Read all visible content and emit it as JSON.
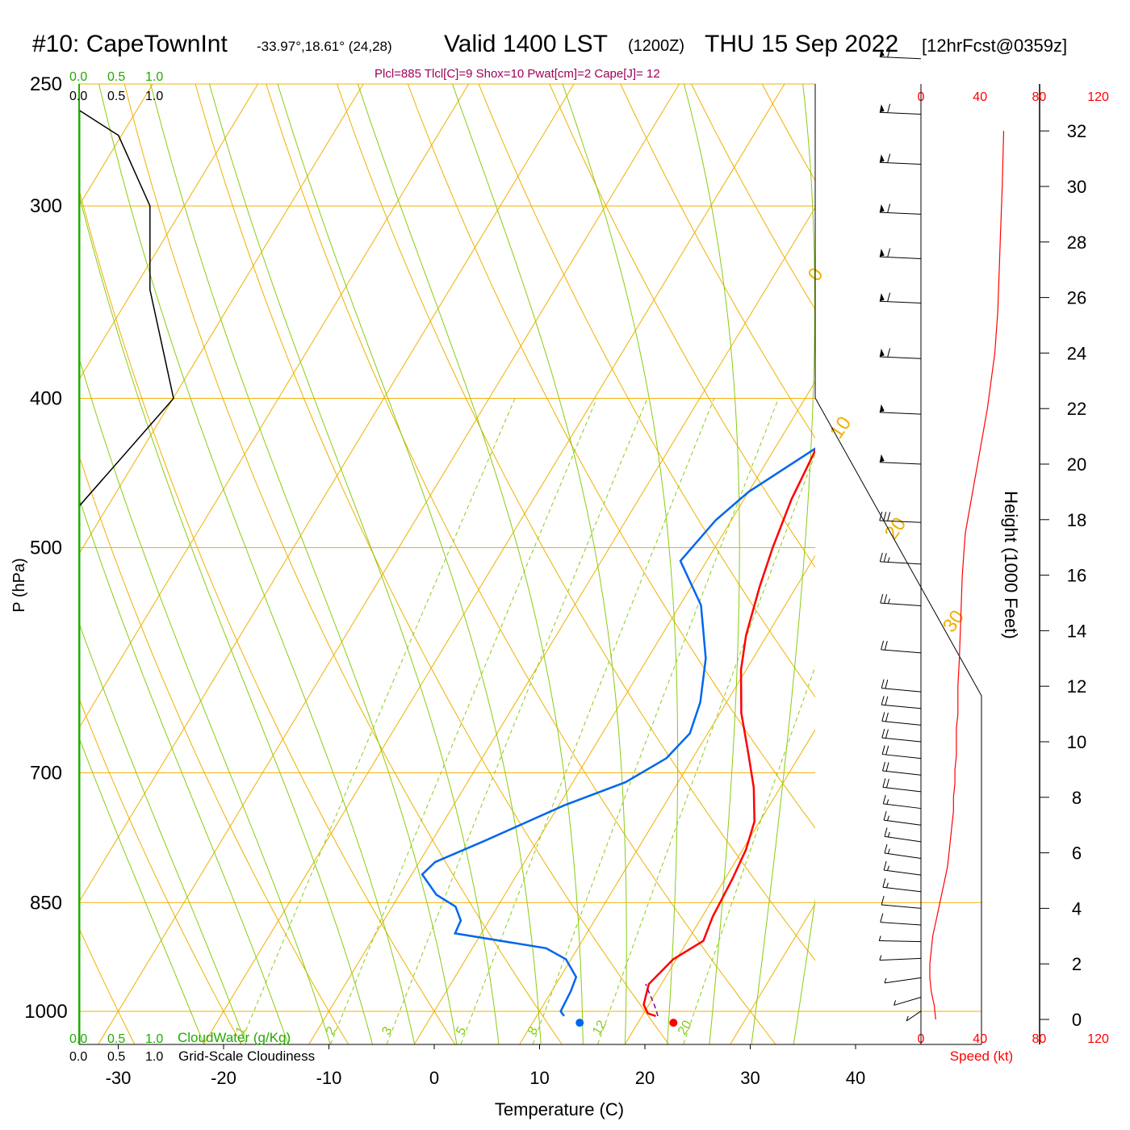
{
  "header": {
    "title": "#10: CapeTownInt",
    "coords": "-33.97°,18.61° (24,28)",
    "valid": "Valid 1400 LST",
    "zulu": "(1200Z)",
    "date": "THU 15 Sep 2022",
    "forecast": "[12hrFcst@0359z]",
    "params": "Plcl=885 Tlcl[C]=9 Shox=10 Pwat[cm]=2 Cape[J]= 12"
  },
  "colors": {
    "temperature": "#ff0000",
    "dewpoint": "#0066ee",
    "isotherm_grid": "#f0b000",
    "dry_adiabat": "#f0b000",
    "moist_adiabat": "#88cc11",
    "mixing_ratio": "#88cc11",
    "cloud_water": "#22aa00",
    "parcel": "#800080",
    "speed_axis": "#ff0000"
  },
  "chart_data": {
    "type": "line",
    "title": "#10: CapeTownInt",
    "xlabel": "Temperature (C)",
    "ylabel": "P (hPa)",
    "y2label": "Height (1000 Feet)",
    "y_scale": "log",
    "xlim": [
      -34,
      36
    ],
    "ylim": [
      1050,
      250
    ],
    "x_ticks": [
      -30,
      -20,
      -10,
      0,
      10,
      20,
      30,
      40
    ],
    "pressure_ticks": [
      1000,
      850,
      700,
      500,
      400,
      300,
      250
    ],
    "height_ticks": [
      0,
      2,
      4,
      6,
      8,
      10,
      12,
      14,
      16,
      18,
      20,
      22,
      24,
      26,
      28,
      30,
      32
    ],
    "isotherm_labels": [
      30,
      20,
      10,
      0,
      -10,
      -20,
      -30
    ],
    "mixing_ratio_labels": [
      "1",
      "2",
      "3",
      "5",
      "8",
      "12",
      "20"
    ],
    "speed_ticks": [
      "0",
      "40",
      "80",
      "120"
    ],
    "speed_label": "Speed (kt)",
    "cloud_scale": [
      "0.0",
      "0.5",
      "1.0"
    ],
    "cloud_water_label": "CloudWater (g/Kg)",
    "cloudiness_label": "Grid-Scale Cloudiness",
    "series": [
      {
        "name": "Temperature",
        "points": [
          [
            21.3,
            1007
          ],
          [
            20.4,
            1003
          ],
          [
            19.5,
            990
          ],
          [
            18.8,
            960
          ],
          [
            19.7,
            925
          ],
          [
            21.5,
            900
          ],
          [
            21.0,
            868
          ],
          [
            20.7,
            820
          ],
          [
            20.3,
            785
          ],
          [
            19.5,
            753
          ],
          [
            17.5,
            716
          ],
          [
            15.0,
            680
          ],
          [
            12.0,
            640
          ],
          [
            9.5,
            600
          ],
          [
            8.0,
            570
          ],
          [
            6.5,
            530
          ],
          [
            5.5,
            500
          ],
          [
            4.5,
            465
          ],
          [
            4.0,
            435
          ],
          [
            3.5,
            415
          ],
          [
            3.0,
            400
          ],
          [
            1.0,
            370
          ],
          [
            -1.0,
            340
          ],
          [
            -4.0,
            310
          ],
          [
            -7.5,
            280
          ],
          [
            -11,
            260
          ]
        ]
      },
      {
        "name": "Dewpoint",
        "points": [
          [
            12.6,
            1007
          ],
          [
            12.0,
            1000
          ],
          [
            11.8,
            970
          ],
          [
            11.5,
            950
          ],
          [
            9.5,
            925
          ],
          [
            7.0,
            910
          ],
          [
            -2.5,
            890
          ],
          [
            -2.7,
            873
          ],
          [
            -4.0,
            855
          ],
          [
            -6.5,
            840
          ],
          [
            -9.0,
            815
          ],
          [
            -8.5,
            800
          ],
          [
            -5.0,
            775
          ],
          [
            0.5,
            735
          ],
          [
            5.0,
            710
          ],
          [
            7.5,
            685
          ],
          [
            8.3,
            660
          ],
          [
            7.5,
            630
          ],
          [
            5.5,
            590
          ],
          [
            2.0,
            545
          ],
          [
            -2.5,
            510
          ],
          [
            -1.5,
            480
          ],
          [
            0.0,
            460
          ],
          [
            4.0,
            430
          ],
          [
            4.0,
            400
          ],
          [
            2.0,
            370
          ],
          [
            -0.5,
            340
          ],
          [
            -4.0,
            310
          ],
          [
            -8.0,
            280
          ],
          [
            -12.0,
            260
          ]
        ]
      },
      {
        "name": "Parcel",
        "points": [
          [
            21.5,
            1007
          ],
          [
            20.5,
            990
          ],
          [
            19.5,
            975
          ],
          [
            18.5,
            960
          ]
        ]
      },
      {
        "name": "Cloud Water",
        "points": [
          [
            0.0,
            1050
          ],
          [
            0.0,
            260
          ]
        ]
      },
      {
        "name": "Grid-Scale Cloudiness",
        "points": [
          [
            0.0,
            470
          ],
          [
            0.6,
            400
          ],
          [
            0.45,
            340
          ],
          [
            0.45,
            300
          ],
          [
            0.25,
            270
          ],
          [
            0.0,
            260
          ]
        ]
      }
    ],
    "surface_markers": {
      "temperature": [
        22.9,
        1005
      ],
      "dewpoint": [
        14.0,
        1005
      ]
    },
    "wind_profile": {
      "height_kft": [
        0.0,
        0.5,
        1.0,
        1.5,
        2.0,
        2.5,
        3.0,
        3.5,
        4.0,
        4.5,
        5.0,
        5.5,
        6.0,
        6.5,
        7.0,
        7.5,
        8.0,
        8.5,
        9.0,
        9.5,
        10.0,
        10.5,
        11.0,
        11.5,
        12.0,
        13.0,
        14.5,
        16.0,
        17.5,
        19.0,
        20.5,
        22.0,
        24.0,
        25.5,
        27.0,
        28.5,
        30.0,
        32.0
      ],
      "speed_kt": [
        10,
        9,
        7,
        6,
        6,
        7,
        8,
        10,
        12,
        14,
        16,
        18,
        19,
        20,
        21,
        22,
        22,
        23,
        23,
        24,
        24,
        24,
        25,
        25,
        25,
        26,
        27,
        28,
        30,
        35,
        40,
        45,
        50,
        52,
        53,
        54,
        55,
        56
      ]
    },
    "wind_barbs": [
      {
        "height_kft": 0.3,
        "dir": 20,
        "speed_kt": 5
      },
      {
        "height_kft": 0.8,
        "dir": 40,
        "speed_kt": 5
      },
      {
        "height_kft": 1.5,
        "dir": 60,
        "speed_kt": 5
      },
      {
        "height_kft": 2.2,
        "dir": 80,
        "speed_kt": 5
      },
      {
        "height_kft": 2.8,
        "dir": 95,
        "speed_kt": 5
      },
      {
        "height_kft": 3.4,
        "dir": 105,
        "speed_kt": 10
      },
      {
        "height_kft": 4.0,
        "dir": 110,
        "speed_kt": 10
      },
      {
        "height_kft": 4.6,
        "dir": 115,
        "speed_kt": 15
      },
      {
        "height_kft": 5.2,
        "dir": 118,
        "speed_kt": 15
      },
      {
        "height_kft": 5.8,
        "dir": 120,
        "speed_kt": 15
      },
      {
        "height_kft": 6.4,
        "dir": 120,
        "speed_kt": 15
      },
      {
        "height_kft": 7.0,
        "dir": 118,
        "speed_kt": 15
      },
      {
        "height_kft": 7.6,
        "dir": 116,
        "speed_kt": 15
      },
      {
        "height_kft": 8.2,
        "dir": 115,
        "speed_kt": 20
      },
      {
        "height_kft": 8.8,
        "dir": 114,
        "speed_kt": 20
      },
      {
        "height_kft": 9.4,
        "dir": 113,
        "speed_kt": 20
      },
      {
        "height_kft": 10.0,
        "dir": 112,
        "speed_kt": 20
      },
      {
        "height_kft": 10.6,
        "dir": 112,
        "speed_kt": 20
      },
      {
        "height_kft": 11.2,
        "dir": 110,
        "speed_kt": 20
      },
      {
        "height_kft": 11.8,
        "dir": 110,
        "speed_kt": 20
      },
      {
        "height_kft": 13.2,
        "dir": 108,
        "speed_kt": 20
      },
      {
        "height_kft": 14.9,
        "dir": 105,
        "speed_kt": 25
      },
      {
        "height_kft": 16.4,
        "dir": 103,
        "speed_kt": 25
      },
      {
        "height_kft": 17.9,
        "dir": 100,
        "speed_kt": 30
      },
      {
        "height_kft": 20.0,
        "dir": 100,
        "speed_kt": 50
      },
      {
        "height_kft": 21.8,
        "dir": 100,
        "speed_kt": 50
      },
      {
        "height_kft": 23.8,
        "dir": 100,
        "speed_kt": 60
      },
      {
        "height_kft": 25.8,
        "dir": 100,
        "speed_kt": 60
      },
      {
        "height_kft": 27.4,
        "dir": 100,
        "speed_kt": 60
      },
      {
        "height_kft": 29.0,
        "dir": 100,
        "speed_kt": 60
      },
      {
        "height_kft": 30.8,
        "dir": 100,
        "speed_kt": 60
      },
      {
        "height_kft": 32.6,
        "dir": 100,
        "speed_kt": 60
      },
      {
        "height_kft": 34.6,
        "dir": 100,
        "speed_kt": 60
      }
    ]
  }
}
